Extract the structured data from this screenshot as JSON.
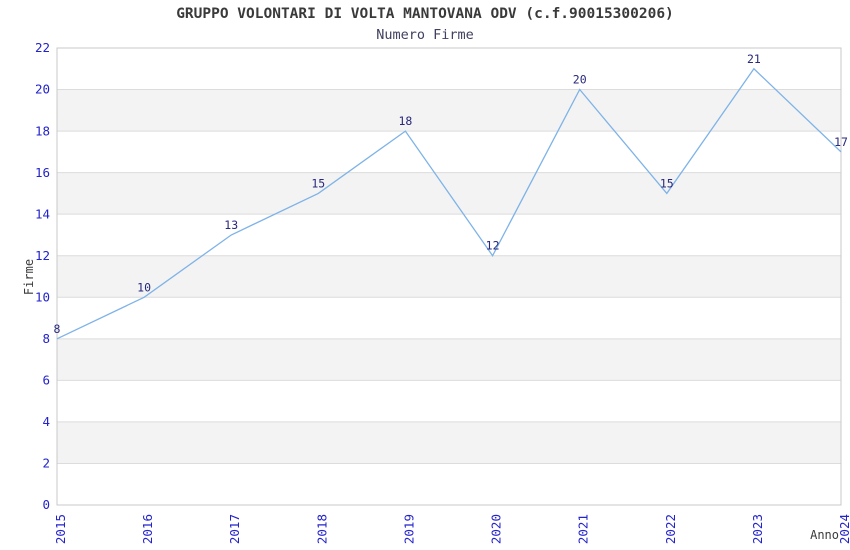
{
  "chart_data": {
    "type": "line",
    "title": "GRUPPO VOLONTARI DI VOLTA MANTOVANA ODV (c.f.90015300206)",
    "subtitle": "Numero Firme",
    "xlabel": "Anno",
    "ylabel": "Firme",
    "categories": [
      "2015",
      "2016",
      "2017",
      "2018",
      "2019",
      "2020",
      "2021",
      "2022",
      "2023",
      "2024"
    ],
    "values": [
      8,
      10,
      13,
      15,
      18,
      12,
      20,
      15,
      21,
      17
    ],
    "ylim": [
      0,
      22
    ],
    "ytick_step": 2,
    "legend": "none",
    "grid": "horizontal-bands",
    "band_intervals": [
      [
        2,
        4
      ],
      [
        6,
        8
      ],
      [
        10,
        12
      ],
      [
        14,
        16
      ],
      [
        18,
        20
      ]
    ],
    "data_labels_shown": true,
    "x_tick_rotation_deg": -90
  },
  "colors": {
    "series_line": "#7eb3e8",
    "axis_tick_text": "#2323cc",
    "data_label_text": "#28287d",
    "title_text": "#3a3a3a",
    "subtitle_text": "#404060",
    "axis_title_text": "#3a3a3a",
    "band_fill": "#f3f3f3",
    "grid_line": "#dcdcdc",
    "plot_border": "#c9c9c9",
    "background": "#ffffff"
  }
}
